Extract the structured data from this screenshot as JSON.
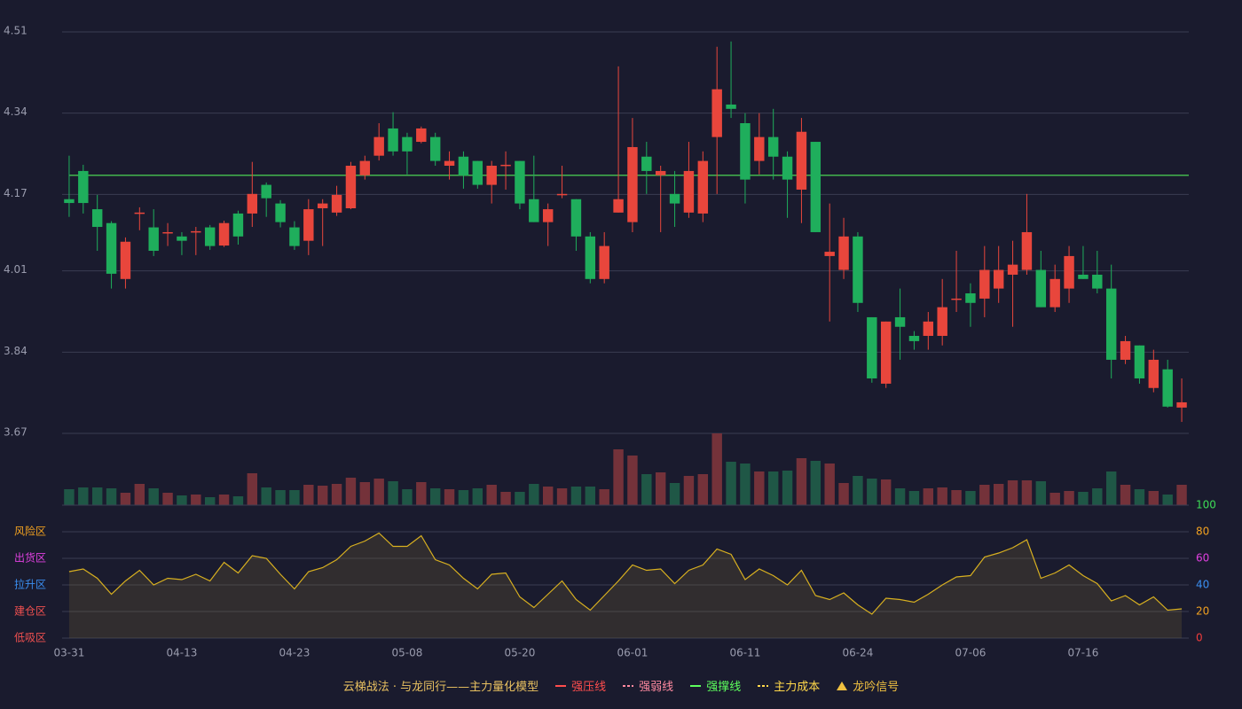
{
  "chart_data": {
    "type": "candlestick",
    "categories": [
      "03-31",
      null,
      null,
      null,
      null,
      null,
      null,
      null,
      "04-13",
      null,
      null,
      null,
      null,
      null,
      null,
      null,
      "04-23",
      null,
      null,
      null,
      null,
      null,
      null,
      null,
      "05-08",
      null,
      null,
      null,
      null,
      null,
      null,
      null,
      "05-20",
      null,
      null,
      null,
      null,
      null,
      null,
      null,
      "06-01",
      null,
      null,
      null,
      null,
      null,
      null,
      null,
      "06-11",
      null,
      null,
      null,
      null,
      null,
      null,
      null,
      "06-24",
      null,
      null,
      null,
      null,
      null,
      null,
      null,
      "07-06",
      null,
      null,
      null,
      null,
      null,
      null,
      null,
      "07-16",
      null,
      null,
      null,
      null,
      null,
      null,
      null
    ],
    "open": [
      4.16,
      4.219,
      4.139,
      4.11,
      3.993,
      4.13,
      4.101,
      4.089,
      4.082,
      4.091,
      4.101,
      4.063,
      4.13,
      4.13,
      4.19,
      4.151,
      4.101,
      4.073,
      4.141,
      4.132,
      4.141,
      4.21,
      4.251,
      4.308,
      4.29,
      4.28,
      4.29,
      4.23,
      4.249,
      4.24,
      4.19,
      4.23,
      4.24,
      4.16,
      4.112,
      4.169,
      4.16,
      4.082,
      3.993,
      4.132,
      4.112,
      4.249,
      4.21,
      4.171,
      4.132,
      4.13,
      4.29,
      4.358,
      4.319,
      4.24,
      4.29,
      4.249,
      4.18,
      4.28,
      4.041,
      4.012,
      4.082,
      3.913,
      3.774,
      3.913,
      3.874,
      3.874,
      3.874,
      3.95,
      3.963,
      3.952,
      3.973,
      4.002,
      4.012,
      4.012,
      3.934,
      3.973,
      4.002,
      4.002,
      3.973,
      3.824,
      3.854,
      3.765,
      3.804,
      3.724
    ],
    "high": [
      4.251,
      4.232,
      4.169,
      4.114,
      4.08,
      4.143,
      4.139,
      4.11,
      4.091,
      4.102,
      4.106,
      4.115,
      4.136,
      4.238,
      4.195,
      4.158,
      4.114,
      4.16,
      4.16,
      4.188,
      4.238,
      4.251,
      4.319,
      4.342,
      4.299,
      4.312,
      4.299,
      4.26,
      4.26,
      4.24,
      4.24,
      4.26,
      4.24,
      4.251,
      4.151,
      4.23,
      4.16,
      4.091,
      4.091,
      4.438,
      4.33,
      4.28,
      4.23,
      4.219,
      4.28,
      4.26,
      4.479,
      4.49,
      4.34,
      4.34,
      4.349,
      4.26,
      4.33,
      4.28,
      4.151,
      4.121,
      4.091,
      3.913,
      3.904,
      3.973,
      3.884,
      3.924,
      3.993,
      4.052,
      3.984,
      4.062,
      4.062,
      4.073,
      4.171,
      4.052,
      4.023,
      4.062,
      4.062,
      4.052,
      4.023,
      3.874,
      3.854,
      3.845,
      3.824,
      3.785
    ],
    "low": [
      4.123,
      4.13,
      4.052,
      3.973,
      3.973,
      4.095,
      4.041,
      4.062,
      4.043,
      4.043,
      4.054,
      4.06,
      4.065,
      4.102,
      4.123,
      4.101,
      4.054,
      4.043,
      4.062,
      4.125,
      4.139,
      4.201,
      4.241,
      4.251,
      4.212,
      4.277,
      4.23,
      4.201,
      4.182,
      4.182,
      4.151,
      4.18,
      4.139,
      4.112,
      4.062,
      4.162,
      4.052,
      3.984,
      3.984,
      4.132,
      4.091,
      4.171,
      4.091,
      4.102,
      4.121,
      4.112,
      4.171,
      4.33,
      4.151,
      4.212,
      4.201,
      4.121,
      4.11,
      4.091,
      3.904,
      3.993,
      3.924,
      3.776,
      3.765,
      3.824,
      3.845,
      3.845,
      3.854,
      3.924,
      3.893,
      3.913,
      3.943,
      3.893,
      4.002,
      3.934,
      3.924,
      3.943,
      3.993,
      3.963,
      3.785,
      3.815,
      3.774,
      3.756,
      3.724,
      3.694
    ],
    "close": [
      4.152,
      4.152,
      4.102,
      4.004,
      4.071,
      4.132,
      4.052,
      4.091,
      4.073,
      4.093,
      4.062,
      4.11,
      4.082,
      4.171,
      4.162,
      4.112,
      4.062,
      4.139,
      4.151,
      4.169,
      4.23,
      4.24,
      4.29,
      4.26,
      4.26,
      4.308,
      4.24,
      4.24,
      4.21,
      4.19,
      4.23,
      4.232,
      4.151,
      4.112,
      4.139,
      4.171,
      4.082,
      3.993,
      4.062,
      4.16,
      4.269,
      4.219,
      4.219,
      4.151,
      4.219,
      4.24,
      4.39,
      4.349,
      4.201,
      4.29,
      4.249,
      4.201,
      4.301,
      4.091,
      4.05,
      4.082,
      3.943,
      3.785,
      3.904,
      3.893,
      3.863,
      3.904,
      3.934,
      3.952,
      3.943,
      4.012,
      4.012,
      4.023,
      4.091,
      3.934,
      3.993,
      4.041,
      3.993,
      3.973,
      3.824,
      3.863,
      3.785,
      3.824,
      3.726,
      3.735
    ],
    "volume": [
      18,
      20,
      20,
      19,
      14,
      24,
      19,
      14,
      11,
      12,
      9,
      12,
      10,
      36,
      20,
      17,
      17,
      23,
      22,
      24,
      31,
      26,
      30,
      27,
      18,
      26,
      19,
      18,
      17,
      19,
      23,
      15,
      15,
      24,
      21,
      19,
      21,
      21,
      18,
      63,
      56,
      35,
      37,
      25,
      33,
      35,
      81,
      49,
      47,
      38,
      38,
      39,
      53,
      50,
      47,
      25,
      33,
      30,
      29,
      19,
      16,
      19,
      20,
      17,
      16,
      23,
      24,
      28,
      28,
      27,
      14,
      16,
      15,
      19,
      38,
      23,
      18,
      16,
      12,
      23
    ],
    "ylim": [
      3.67,
      4.51
    ],
    "yticks": [
      4.51,
      4.34,
      4.17,
      4.01,
      3.84,
      3.67
    ],
    "up_color": "#e8463c",
    "down_color": "#1fae5c",
    "up_volume_color": "#74323a",
    "down_volume_color": "#1f5746",
    "support_line": {
      "value": 4.21,
      "color": "#43b54d"
    },
    "indicator": {
      "type": "line",
      "color": "#d8b020",
      "values": [
        50,
        52,
        45,
        33,
        43,
        51,
        40,
        45,
        44,
        48,
        43,
        57,
        49,
        62,
        60,
        48,
        37,
        50,
        53,
        59,
        69,
        73,
        79,
        69,
        69,
        77,
        59,
        55,
        45,
        37,
        48,
        49,
        31,
        23,
        33,
        43,
        29,
        21,
        32,
        43,
        55,
        51,
        52,
        41,
        51,
        55,
        67,
        63,
        44,
        52,
        47,
        40,
        51,
        32,
        29,
        34,
        25,
        18,
        30,
        29,
        27,
        33,
        40,
        46,
        47,
        61,
        64,
        68,
        74,
        45,
        49,
        55,
        47,
        41,
        28,
        32,
        25,
        31,
        21,
        22
      ],
      "ylim": [
        0,
        100
      ],
      "yticks": [
        100,
        80,
        60,
        40,
        20,
        0
      ],
      "ytick_colors": [
        "#3ddc56",
        "#f0a020",
        "#e040e0",
        "#3a8ef0",
        "#f0a020",
        "#f03c3c"
      ],
      "zones": [
        {
          "label": "风险区",
          "value": 80,
          "color": "#f0a020"
        },
        {
          "label": "出货区",
          "value": 60,
          "color": "#e040e0"
        },
        {
          "label": "拉升区",
          "value": 40,
          "color": "#3a8ef0"
        },
        {
          "label": "建仓区",
          "value": 20,
          "color": "#f05050"
        },
        {
          "label": "低吸区",
          "value": 0,
          "color": "#f05050"
        }
      ]
    },
    "legend": [
      {
        "name": "云梯战法 · 与龙同行——主力量化模型",
        "color": "#e8c060",
        "style": "text"
      },
      {
        "name": "强压线",
        "color": "#ff4d4d",
        "style": "solid"
      },
      {
        "name": "强弱线",
        "color": "#ff8aa0",
        "style": "dashed"
      },
      {
        "name": "强撑线",
        "color": "#5dff5d",
        "style": "solid"
      },
      {
        "name": "主力成本",
        "color": "#ffd84a",
        "style": "dashed"
      },
      {
        "name": "龙吟信号",
        "color": "#f0c040",
        "style": "triangle"
      }
    ]
  }
}
